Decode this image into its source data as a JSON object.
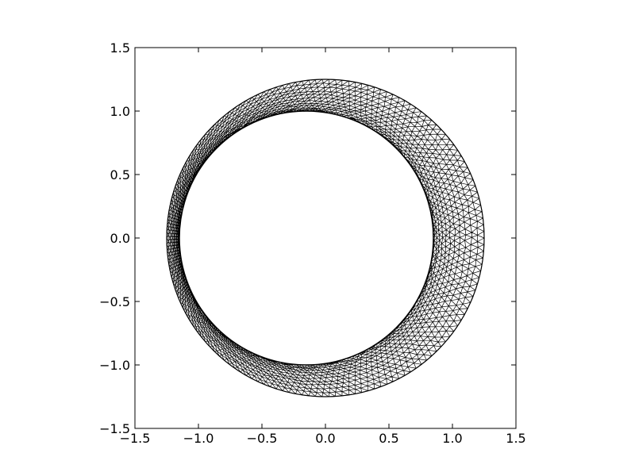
{
  "chart_data": {
    "type": "scatter",
    "title": "",
    "xlabel": "",
    "ylabel": "",
    "xlim": [
      -1.5,
      1.5
    ],
    "ylim": [
      -1.5,
      1.5
    ],
    "grid": false,
    "x_ticks": [
      {
        "value": -1.5,
        "label": "−1.5"
      },
      {
        "value": -1.0,
        "label": "−1.0"
      },
      {
        "value": -0.5,
        "label": "−0.5"
      },
      {
        "value": 0.0,
        "label": "0.0"
      },
      {
        "value": 0.5,
        "label": "0.5"
      },
      {
        "value": 1.0,
        "label": "1.0"
      },
      {
        "value": 1.5,
        "label": "1.5"
      }
    ],
    "y_ticks": [
      {
        "value": 1.5,
        "label": "1.5"
      },
      {
        "value": 1.0,
        "label": "1.0"
      },
      {
        "value": 0.5,
        "label": "0.5"
      },
      {
        "value": 0.0,
        "label": "0.0"
      },
      {
        "value": -0.5,
        "label": "−0.5"
      },
      {
        "value": -1.0,
        "label": "−1.0"
      },
      {
        "value": -1.5,
        "label": "−1.5"
      }
    ],
    "mesh": {
      "description_visible": "triangulated annular mesh",
      "outer_circle": {
        "cx": 0.0,
        "cy": 0.0,
        "r": 1.25
      },
      "inner_circle": {
        "cx": -0.15,
        "cy": 0.0,
        "r": 1.0
      },
      "line_color": "#000000"
    }
  }
}
